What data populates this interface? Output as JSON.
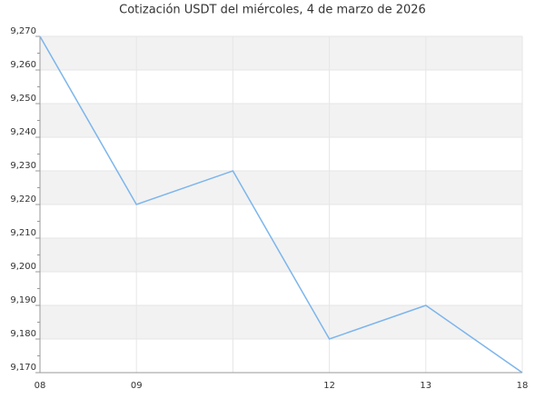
{
  "chart_data": {
    "type": "line",
    "title": "Cotización USDT del miércoles, 4 de marzo de 2026",
    "categories": [
      "08",
      "09",
      null,
      "12",
      "13",
      "18"
    ],
    "series": [
      {
        "name": "USDT",
        "color": "#7cb5ec",
        "values": [
          9.27,
          9.22,
          9.23,
          9.18,
          9.19,
          9.17
        ]
      }
    ],
    "ylim": [
      9.17,
      9.27
    ],
    "yticks": [
      {
        "value": 9.17,
        "label": "9,170"
      },
      {
        "value": 9.18,
        "label": "9,180"
      },
      {
        "value": 9.19,
        "label": "9,190"
      },
      {
        "value": 9.2,
        "label": "9,200"
      },
      {
        "value": 9.21,
        "label": "9,210"
      },
      {
        "value": 9.22,
        "label": "9,220"
      },
      {
        "value": 9.23,
        "label": "9,230"
      },
      {
        "value": 9.24,
        "label": "9,240"
      },
      {
        "value": 9.25,
        "label": "9,250"
      },
      {
        "value": 9.26,
        "label": "9,260"
      },
      {
        "value": 9.27,
        "label": "9,270"
      }
    ],
    "grid": true
  }
}
